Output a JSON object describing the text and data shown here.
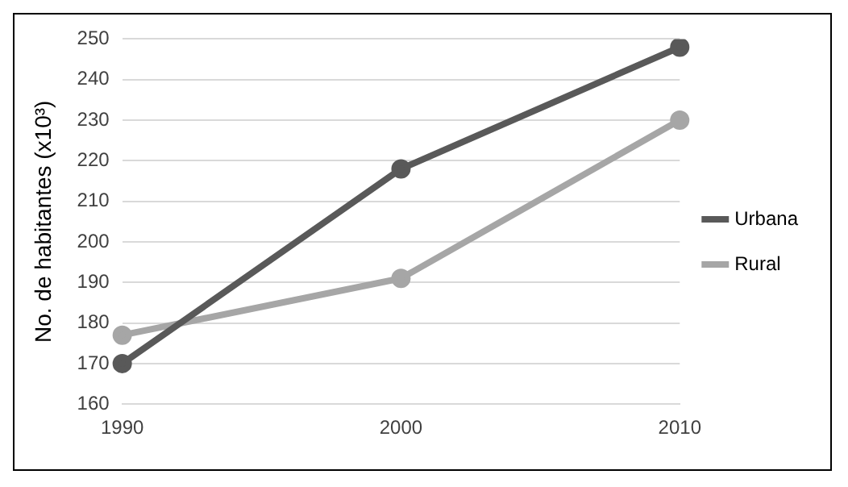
{
  "chart_data": {
    "type": "line",
    "ylabel": "No. de habitantes (x10³)",
    "categories": [
      "1990",
      "2000",
      "2010"
    ],
    "series": [
      {
        "name": "Urbana",
        "color": "#595959",
        "values": [
          170,
          218,
          248
        ]
      },
      {
        "name": "Rural",
        "color": "#a6a6a6",
        "values": [
          177,
          191,
          230
        ]
      }
    ],
    "ylim": [
      160,
      250
    ],
    "yticks": [
      160,
      170,
      180,
      190,
      200,
      210,
      220,
      230,
      240,
      250
    ],
    "grid": "y",
    "legend": "right",
    "marker": "circle"
  }
}
